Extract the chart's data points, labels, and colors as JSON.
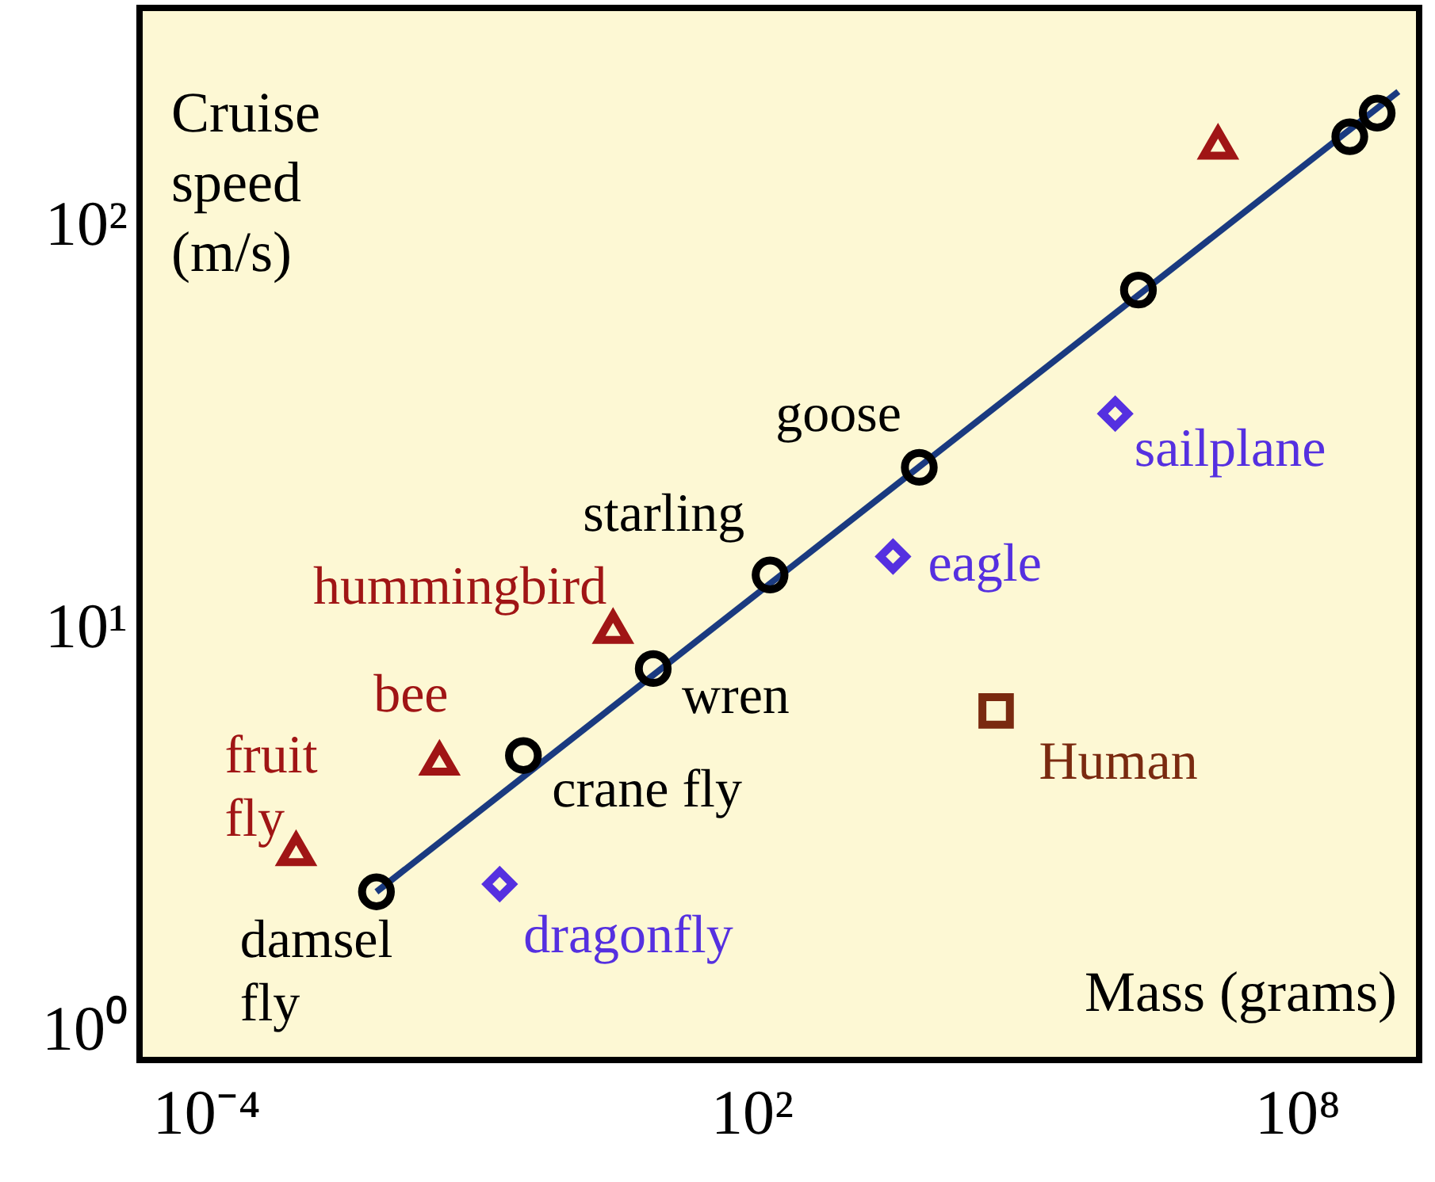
{
  "chart_data": {
    "type": "scatter",
    "xlabel": "Mass (grams)",
    "ylabel": "Cruise\nspeed\n(m/s)",
    "log": "xy",
    "grid": false,
    "xlim": [
      1.86e-05,
      2200000000
    ],
    "ylim": [
      0.84,
      347
    ],
    "xticks": [
      {
        "value": 0.0001,
        "label": "10⁻⁴"
      },
      {
        "value": 100,
        "label": "10²"
      },
      {
        "value": 100000000,
        "label": "10⁸"
      }
    ],
    "yticks": [
      {
        "value": 1,
        "label": "10⁰"
      },
      {
        "value": 10,
        "label": "10¹"
      },
      {
        "value": 100,
        "label": "10²"
      }
    ],
    "series": [
      {
        "type": "line",
        "color": "#1a3a80",
        "line_style": "solid",
        "x": [
          0.0075,
          1300000000
        ],
        "values": [
          2.2,
          215
        ]
      },
      {
        "color": "#000000",
        "marker": "circle",
        "x": [
          0.0075,
          0.31,
          8.3,
          160,
          7000,
          1800000,
          380000000,
          760000000
        ],
        "values": [
          2.2,
          4.8,
          7.9,
          13.5,
          25,
          69,
          166,
          190
        ]
      },
      {
        "color": "#a01515",
        "marker": "triangle",
        "x": [
          13500000,
          3,
          0.037,
          0.00098
        ],
        "values": [
          160,
          10,
          4.7,
          2.8
        ]
      },
      {
        "color": "#5530e0",
        "marker": "diamond",
        "x": [
          0.17,
          3600,
          1000000
        ],
        "values": [
          2.3,
          15,
          34
        ]
      },
      {
        "color": "#7a2a10",
        "marker": "square",
        "x": [
          49000
        ],
        "values": [
          6.2
        ]
      }
    ],
    "annotations": [
      {
        "text": "damsel\nfly",
        "x": 0.0075,
        "y": 2.2
      },
      {
        "text": "crane fly",
        "x": 0.31,
        "y": 4.8
      },
      {
        "text": "wren",
        "x": 8.3,
        "y": 7.9
      },
      {
        "text": "starling",
        "x": 160,
        "y": 13.5
      },
      {
        "text": "goose",
        "x": 7000,
        "y": 25
      },
      {
        "text": "hummingbird",
        "x": 3,
        "y": 10
      },
      {
        "text": "bee",
        "x": 0.037,
        "y": 4.7
      },
      {
        "text": "fruit\nfly",
        "x": 0.00098,
        "y": 2.8
      },
      {
        "text": "dragonfly",
        "x": 0.17,
        "y": 2.3
      },
      {
        "text": "eagle",
        "x": 3600,
        "y": 15
      },
      {
        "text": "sailplane",
        "x": 1000000,
        "y": 34
      },
      {
        "text": "Human",
        "x": 49000,
        "y": 6.2
      }
    ]
  }
}
